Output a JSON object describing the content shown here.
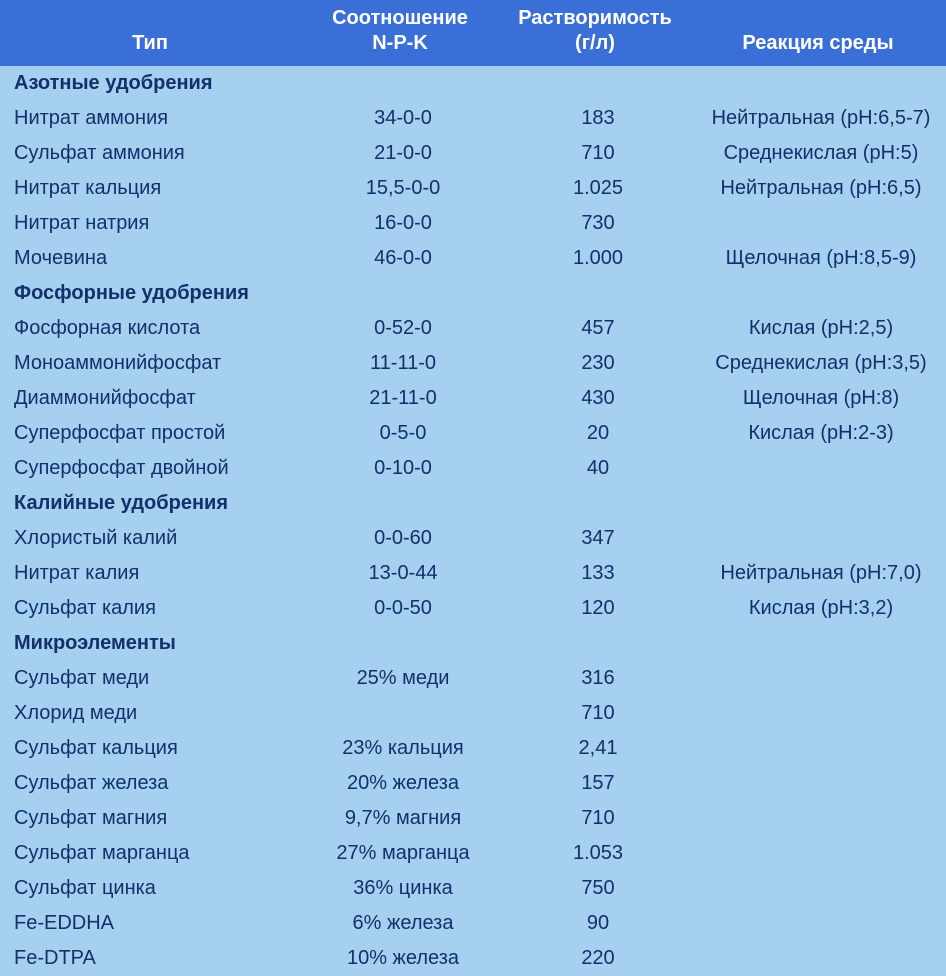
{
  "colors": {
    "header_bg": "#3b6fd8",
    "header_text": "#ffffff",
    "body_bg": "#a5d0ef",
    "body_text": "#13306a"
  },
  "header": {
    "col1": "Тип",
    "col2_l1": "Соотношение",
    "col2_l2": "N-P-K",
    "col3_l1": "Растворимость",
    "col3_l2": "(г/л)",
    "col4": "Реакция среды"
  },
  "sections": [
    {
      "title": "Азотные удобрения",
      "rows": [
        {
          "name": "Нитрат аммония",
          "npk": "34-0-0",
          "sol": "183",
          "react": "Нейтральная (pH:6,5-7)"
        },
        {
          "name": "Сульфат аммония",
          "npk": "21-0-0",
          "sol": "710",
          "react": "Среднекислая (pH:5)"
        },
        {
          "name": "Нитрат кальция",
          "npk": "15,5-0-0",
          "sol": "1.025",
          "react": "Нейтральная (pH:6,5)"
        },
        {
          "name": "Нитрат натрия",
          "npk": "16-0-0",
          "sol": "730",
          "react": ""
        },
        {
          "name": "Мочевина",
          "npk": "46-0-0",
          "sol": "1.000",
          "react": "Щелочная (pH:8,5-9)"
        }
      ]
    },
    {
      "title": "Фосфорные удобрения",
      "rows": [
        {
          "name": "Фосфорная кислота",
          "npk": "0-52-0",
          "sol": "457",
          "react": "Кислая (pH:2,5)"
        },
        {
          "name": "Моноаммонийфосфат",
          "npk": "11-11-0",
          "sol": "230",
          "react": "Среднекислая (pH:3,5)"
        },
        {
          "name": "Диаммонийфосфат",
          "npk": "21-11-0",
          "sol": "430",
          "react": "Щелочная (pH:8)"
        },
        {
          "name": "Суперфосфат простой",
          "npk": "0-5-0",
          "sol": "20",
          "react": "Кислая (pH:2-3)"
        },
        {
          "name": "Суперфосфат двойной",
          "npk": "0-10-0",
          "sol": "40",
          "react": ""
        }
      ]
    },
    {
      "title": "Калийные удобрения",
      "rows": [
        {
          "name": "Хлористый калий",
          "npk": "0-0-60",
          "sol": "347",
          "react": ""
        },
        {
          "name": "Нитрат калия",
          "npk": "13-0-44",
          "sol": "133",
          "react": "Нейтральная (pH:7,0)"
        },
        {
          "name": "Сульфат калия",
          "npk": "0-0-50",
          "sol": "120",
          "react": "Кислая (pH:3,2)"
        }
      ]
    },
    {
      "title": "Микроэлементы",
      "rows": [
        {
          "name": "Сульфат меди",
          "npk": "25% меди",
          "sol": "316",
          "react": ""
        },
        {
          "name": "Хлорид меди",
          "npk": "",
          "sol": "710",
          "react": ""
        },
        {
          "name": "Сульфат кальция",
          "npk": "23% кальция",
          "sol": "2,41",
          "react": ""
        },
        {
          "name": "Сульфат железа",
          "npk": "20% железа",
          "sol": "157",
          "react": ""
        },
        {
          "name": "Сульфат магния",
          "npk": "9,7% магния",
          "sol": "710",
          "react": ""
        },
        {
          "name": "Сульфат марганца",
          "npk": "27% марганца",
          "sol": "1.053",
          "react": ""
        },
        {
          "name": "Сульфат цинка",
          "npk": "36% цинка",
          "sol": "750",
          "react": ""
        },
        {
          "name": "Fe-EDDHA",
          "npk": "6% железа",
          "sol": "90",
          "react": ""
        },
        {
          "name": "Fe-DTPA",
          "npk": "10% железа",
          "sol": "220",
          "react": ""
        }
      ]
    }
  ]
}
